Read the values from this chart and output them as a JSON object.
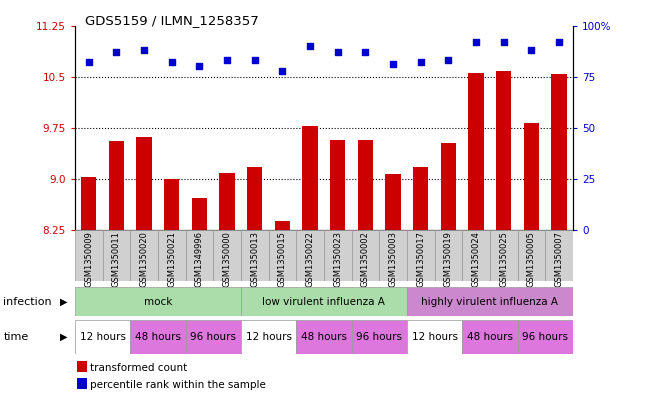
{
  "title": "GDS5159 / ILMN_1258357",
  "samples": [
    "GSM1350009",
    "GSM1350011",
    "GSM1350020",
    "GSM1350021",
    "GSM1349996",
    "GSM1350000",
    "GSM1350013",
    "GSM1350015",
    "GSM1350022",
    "GSM1350023",
    "GSM1350002",
    "GSM1350003",
    "GSM1350017",
    "GSM1350019",
    "GSM1350024",
    "GSM1350025",
    "GSM1350005",
    "GSM1350007"
  ],
  "bar_values": [
    9.02,
    9.55,
    9.62,
    9.0,
    8.72,
    9.08,
    9.17,
    8.38,
    9.77,
    9.57,
    9.57,
    9.07,
    9.18,
    9.52,
    10.56,
    10.58,
    9.82,
    10.54
  ],
  "dot_values": [
    82,
    87,
    88,
    82,
    80,
    83,
    83,
    78,
    90,
    87,
    87,
    81,
    82,
    83,
    92,
    92,
    88,
    92
  ],
  "ylim_left": [
    8.25,
    11.25
  ],
  "ylim_right": [
    0,
    100
  ],
  "yticks_left": [
    8.25,
    9.0,
    9.75,
    10.5,
    11.25
  ],
  "yticks_right": [
    0,
    25,
    50,
    75,
    100
  ],
  "bar_color": "#cc0000",
  "dot_color": "#0000cc",
  "infection_groups": [
    {
      "label": "mock",
      "start": 0,
      "end": 6,
      "color": "#aaddaa"
    },
    {
      "label": "low virulent influenza A",
      "start": 6,
      "end": 12,
      "color": "#aaddaa"
    },
    {
      "label": "highly virulent influenza A",
      "start": 12,
      "end": 18,
      "color": "#cc88cc"
    }
  ],
  "time_colors": [
    "#ffffff",
    "#dd77dd",
    "#dd77dd"
  ],
  "time_labels": [
    "12 hours",
    "48 hours",
    "96 hours"
  ],
  "legend_bar_label": "transformed count",
  "legend_dot_label": "percentile rank within the sample",
  "infection_label": "infection",
  "time_label": "time"
}
